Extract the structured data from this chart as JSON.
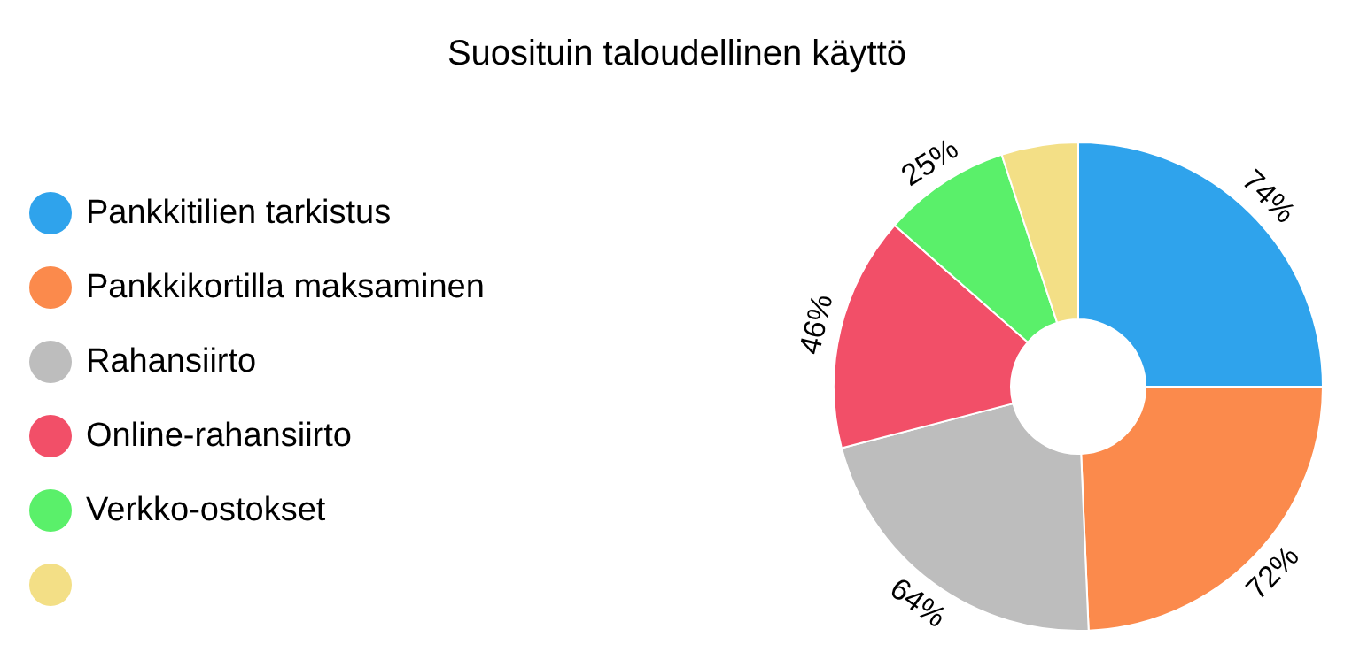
{
  "chart_data": {
    "type": "donut",
    "title": "Suosituin taloudellinen käyttö",
    "categories": [
      "Pankkitilien tarkistus",
      "Pankkikortilla maksaminen",
      "Rahansiirto",
      "Online-rahansiirto",
      "Verkko-ostokset",
      null
    ],
    "values": [
      74,
      72,
      64,
      46,
      25,
      15
    ],
    "value_labels": [
      "74%",
      "72%",
      "64%",
      "46%",
      "25%",
      null
    ],
    "colors": [
      "#2fa3ec",
      "#fb8a4c",
      "#bdbdbd",
      "#f24f68",
      "#5af06a",
      "#f3df86"
    ],
    "legend": "left"
  }
}
